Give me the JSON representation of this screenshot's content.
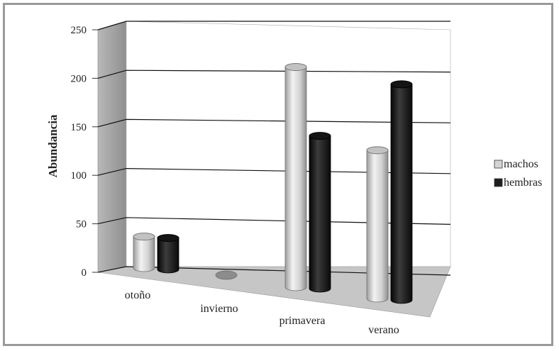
{
  "chart_data": {
    "type": "bar",
    "style": "3d-cylinder",
    "title": "",
    "xlabel": "",
    "ylabel": "Abundancia",
    "ylim": [
      0,
      250
    ],
    "yticks": [
      "0",
      "50",
      "100",
      "150",
      "200",
      "250"
    ],
    "categories": [
      "otoño",
      "invierno",
      "primavera",
      "verano"
    ],
    "series": [
      {
        "name": "machos",
        "color": "#d4d4d4",
        "values": [
          35,
          0,
          245,
          165
        ]
      },
      {
        "name": "hembras",
        "color": "#1e1e1e",
        "values": [
          35,
          0,
          170,
          240
        ]
      }
    ],
    "grid": true,
    "legend": "right",
    "colors": {
      "wall": "#ffffff",
      "side_wall": "#a9a9a9",
      "floor": "#c6c6c6",
      "frame": "#9a9a9a",
      "gridline": "#111111"
    }
  }
}
